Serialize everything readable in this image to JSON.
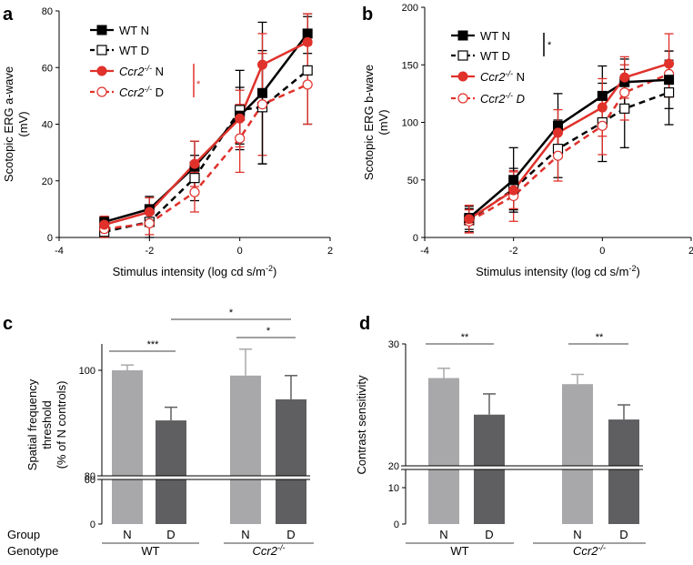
{
  "panels": {
    "a": "a",
    "b": "b",
    "c": "c",
    "d": "d"
  },
  "colors": {
    "black": "#000000",
    "red": "#e0312b",
    "light_bar": "#a8a8aa",
    "dark_bar": "#5f5f61"
  },
  "chart_data": [
    {
      "id": "a",
      "type": "line",
      "title": "",
      "xlabel": "Stimulus intensity (log cd s/m",
      "xlabel_sup": "-2",
      "xlabel_end": ")",
      "ylabel_1": "Scotopic ERG a-wave",
      "ylabel_2": "(mV)",
      "xlim": [
        -4,
        2
      ],
      "ylim": [
        0,
        80
      ],
      "xticks": [
        -4,
        -2,
        0,
        2
      ],
      "yticks": [
        0,
        20,
        40,
        60,
        80
      ],
      "x": [
        -3,
        -2,
        -1,
        0,
        0.5,
        1.5
      ],
      "series": [
        {
          "name": "WT N",
          "label_main": "WT N",
          "label_sup": "",
          "label_tail": "",
          "color": "#000000",
          "dashed": false,
          "marker": "square-filled",
          "values": [
            5.5,
            10,
            25,
            43,
            51,
            72
          ],
          "errors": [
            2,
            4.5,
            9,
            10,
            25,
            7
          ]
        },
        {
          "name": "WT D",
          "label_main": "WT D",
          "label_sup": "",
          "label_tail": "",
          "color": "#000000",
          "dashed": true,
          "marker": "square-open",
          "values": [
            2,
            5.5,
            21,
            45,
            46,
            59
          ],
          "errors": [
            3,
            6,
            8,
            14,
            20,
            19
          ]
        },
        {
          "name": "Ccr2-/- N",
          "label_main": "Ccr2",
          "label_sup": "-/-",
          "label_tail": " N",
          "color": "#e0312b",
          "dashed": false,
          "marker": "circle-filled",
          "values": [
            4.5,
            9,
            26,
            42,
            61,
            69
          ],
          "errors": [
            3,
            5,
            8,
            10,
            11,
            10
          ]
        },
        {
          "name": "Ccr2-/- D",
          "label_main": "Ccr2",
          "label_sup": "-/-",
          "label_tail": " D",
          "color": "#e0312b",
          "dashed": true,
          "marker": "circle-open",
          "values": [
            3,
            5,
            16,
            35,
            47,
            54
          ],
          "errors": [
            3,
            4,
            7,
            12,
            18,
            14
          ]
        }
      ],
      "significance": "*"
    },
    {
      "id": "b",
      "type": "line",
      "title": "",
      "xlabel": "Stimulus intensity (log cd s/m",
      "xlabel_sup": "-2",
      "xlabel_end": ")",
      "ylabel_1": "Scotopic ERG b-wave",
      "ylabel_2": "(mV)",
      "xlim": [
        -4,
        2
      ],
      "ylim": [
        0,
        200
      ],
      "xticks": [
        -4,
        -2,
        0,
        2
      ],
      "yticks": [
        0,
        50,
        100,
        150,
        200
      ],
      "x": [
        -3,
        -2,
        -1,
        0,
        0.5,
        1.5
      ],
      "series": [
        {
          "name": "WT N",
          "label_main": "WT N",
          "label_sup": "",
          "label_tail": "",
          "color": "#000000",
          "dashed": false,
          "marker": "square-filled",
          "values": [
            17,
            50,
            97,
            123,
            135,
            137
          ],
          "errors": [
            10,
            28,
            28,
            26,
            20,
            25
          ]
        },
        {
          "name": "WT D",
          "label_main": "WT D",
          "label_sup": "",
          "label_tail": "",
          "color": "#000000",
          "dashed": true,
          "marker": "square-open",
          "values": [
            15,
            42,
            77,
            100,
            112,
            126
          ],
          "errors": [
            10,
            18,
            25,
            34,
            34,
            28
          ]
        },
        {
          "name": "Ccr2-/- N",
          "label_main": "Ccr2",
          "label_sup": "-/-",
          "label_tail": " N",
          "color": "#e0312b",
          "dashed": false,
          "marker": "circle-filled",
          "values": [
            16,
            41,
            91,
            113,
            139,
            151
          ],
          "errors": [
            12,
            16,
            20,
            25,
            18,
            26
          ]
        },
        {
          "name": "Ccr2-/- D",
          "label_main": "Ccr2",
          "label_sup": "-/-",
          "label_tail": " D",
          "color": "#e0312b",
          "dashed": true,
          "marker": "circle-open",
          "values": [
            14,
            36,
            71,
            97,
            126,
            142
          ],
          "errors": [
            10,
            22,
            22,
            25,
            24,
            20
          ]
        }
      ],
      "significance": "*"
    },
    {
      "id": "c",
      "type": "bar",
      "title": "",
      "ylabel_1": "Spatial frequency",
      "ylabel_2": "threshold",
      "ylabel_3": "(% of N controls)",
      "axis_break": true,
      "ylim_upper": [
        80,
        105
      ],
      "ylim_lower": [
        0,
        60
      ],
      "yticks_upper": [
        80,
        100
      ],
      "yticks_lower": [
        0,
        60
      ],
      "categories": [
        "N",
        "D",
        "N",
        "D"
      ],
      "values": [
        100,
        90.5,
        99,
        94.5
      ],
      "errors": [
        1,
        2.5,
        5,
        4.5
      ],
      "bar_colors": [
        "#a8a8aa",
        "#5f5f61",
        "#a8a8aa",
        "#5f5f61"
      ],
      "significance": [
        {
          "from": 0,
          "to": 1,
          "label": "***"
        },
        {
          "from": 1,
          "to": 3,
          "label": "*"
        },
        {
          "from": 2,
          "to": 3,
          "label": "*"
        }
      ],
      "group_label": "Group",
      "genotype_label": "Genotype",
      "genotypes": [
        {
          "main": "WT",
          "sup": ""
        },
        {
          "main": "Ccr2",
          "sup": "-/-"
        }
      ]
    },
    {
      "id": "d",
      "type": "bar",
      "title": "",
      "ylabel_1": "Contrast sensitivity",
      "axis_break": true,
      "ylim_upper": [
        20,
        30
      ],
      "ylim_lower": [
        0,
        15
      ],
      "yticks_upper": [
        20,
        30
      ],
      "yticks_lower": [
        0,
        10
      ],
      "categories": [
        "N",
        "D",
        "N",
        "D"
      ],
      "values": [
        27.2,
        24.2,
        26.7,
        23.8
      ],
      "errors": [
        0.8,
        1.7,
        0.8,
        1.2
      ],
      "bar_colors": [
        "#a8a8aa",
        "#5f5f61",
        "#a8a8aa",
        "#5f5f61"
      ],
      "significance": [
        {
          "from": 0,
          "to": 1,
          "label": "**"
        },
        {
          "from": 2,
          "to": 3,
          "label": "**"
        }
      ],
      "genotypes": [
        {
          "main": "WT",
          "sup": ""
        },
        {
          "main": "Ccr2",
          "sup": "-/-"
        }
      ]
    }
  ]
}
